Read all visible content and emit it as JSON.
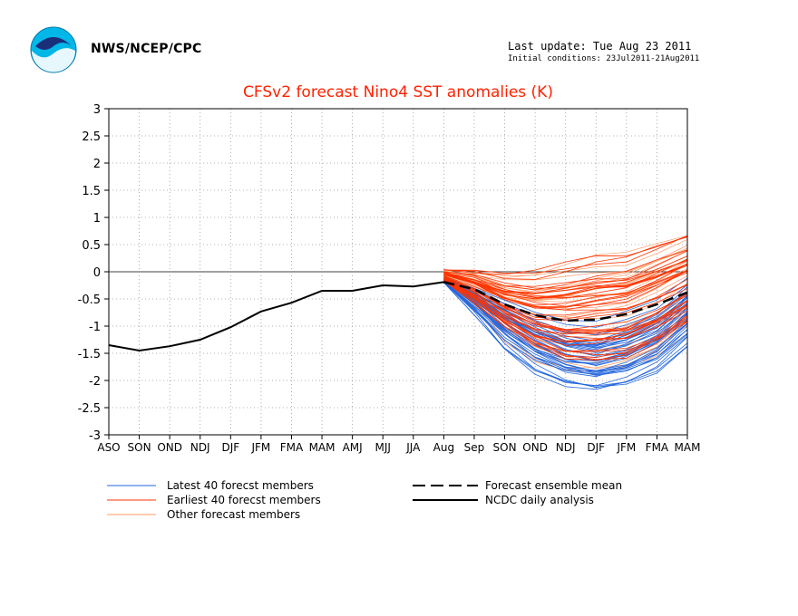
{
  "header": {
    "org": "NWS/NCEP/CPC",
    "last_update": "Last update: Tue Aug 23 2011",
    "initial_conditions": "Initial conditions: 23Jul2011-21Aug2011"
  },
  "colors": {
    "title": "#ff2200",
    "latest": "#2266dd",
    "earliest": "#ff3300",
    "other": "#ff9966",
    "mean": "#000000",
    "analysis": "#000000"
  },
  "chart_data": {
    "type": "line",
    "title": "CFSv2 forecast Nino4 SST anomalies (K)",
    "xlabel": "",
    "ylabel": "",
    "categories": [
      "ASO",
      "SON",
      "OND",
      "NDJ",
      "DJF",
      "JFM",
      "FMA",
      "MAM",
      "AMJ",
      "MJJ",
      "JJA",
      "Aug",
      "Sep",
      "SON",
      "OND",
      "NDJ",
      "DJF",
      "JFM",
      "FMA",
      "MAM"
    ],
    "ylim": [
      -3,
      3
    ],
    "yticks": [
      "3",
      "2.5",
      "2",
      "1.5",
      "1",
      "0.5",
      "0",
      "-0.5",
      "-1",
      "-1.5",
      "-2",
      "-2.5",
      "-3"
    ],
    "grid": true,
    "legend": {
      "latest": "Latest 40 forecst members",
      "earliest": "Earliest 40 forecst members",
      "other": "Other forecast members",
      "mean": "Forecast ensemble mean",
      "analysis": "NCDC daily analysis"
    },
    "analysis": [
      -1.35,
      -1.45,
      -1.37,
      -1.25,
      -1.02,
      -0.73,
      -0.57,
      -0.35,
      -0.35,
      -0.25,
      -0.27,
      -0.19
    ],
    "ensemble_mean": [
      -0.19,
      -0.32,
      -0.6,
      -0.8,
      -0.9,
      -0.88,
      -0.78,
      -0.6,
      -0.38
    ],
    "latest_members_envelope": {
      "low": [
        -0.2,
        -0.75,
        -1.4,
        -1.85,
        -2.1,
        -2.2,
        -2.1,
        -1.85,
        -1.35
      ],
      "high": [
        -0.1,
        -0.25,
        -0.45,
        -0.7,
        -0.9,
        -0.95,
        -0.75,
        -0.5,
        -0.05
      ]
    },
    "earliest_members_envelope": {
      "low": [
        -0.2,
        -0.6,
        -1.1,
        -1.5,
        -1.75,
        -1.8,
        -1.75,
        -1.5,
        -1.1
      ],
      "high": [
        0.05,
        0.05,
        0.0,
        0.05,
        0.2,
        0.35,
        0.4,
        0.6,
        0.78
      ]
    }
  }
}
